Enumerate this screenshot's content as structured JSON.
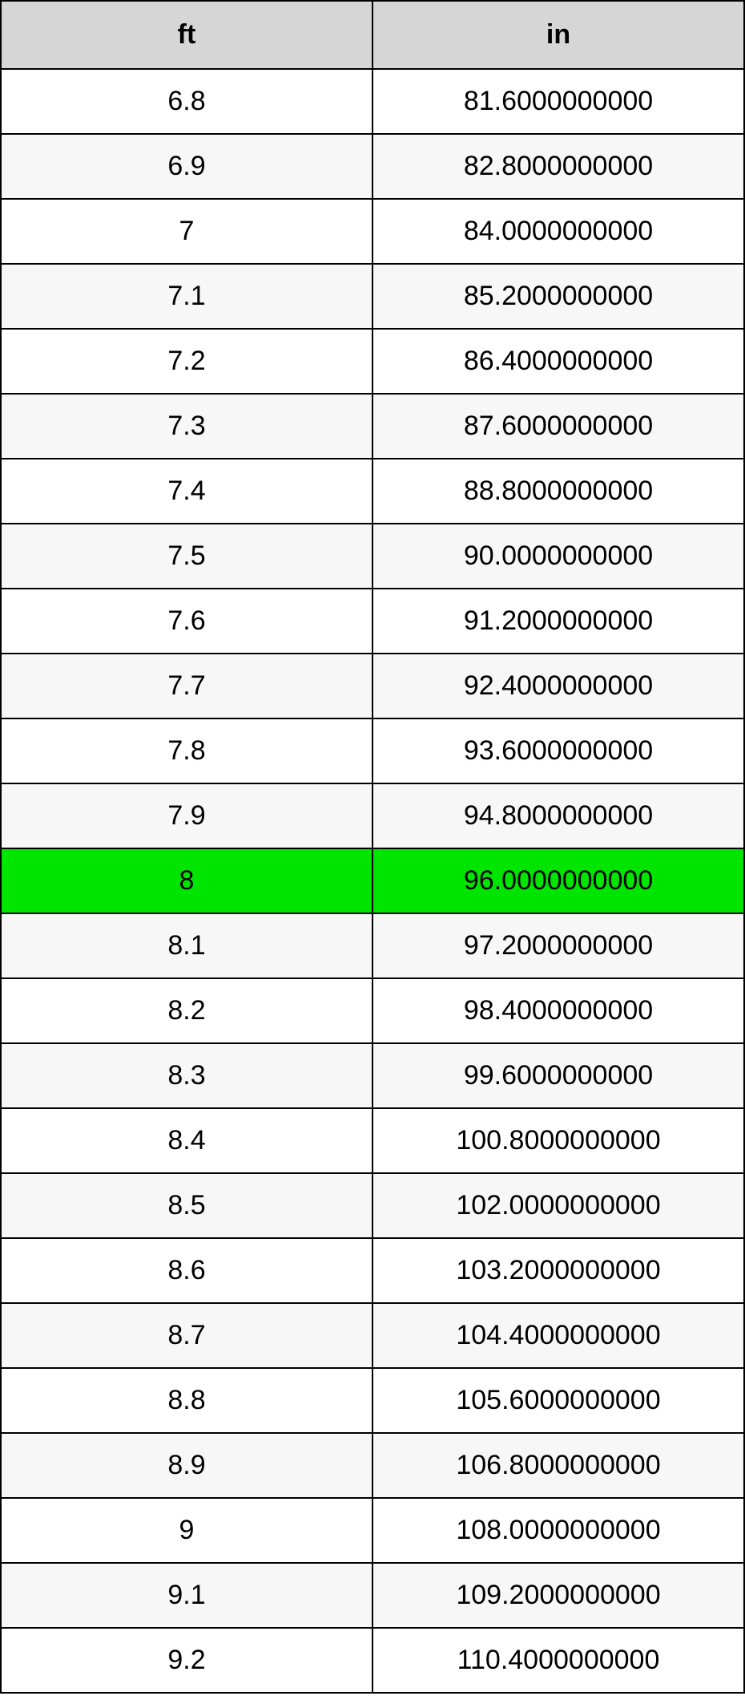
{
  "table": {
    "type": "table",
    "columns": [
      {
        "header": "ft",
        "align": "center"
      },
      {
        "header": "in",
        "align": "center"
      }
    ],
    "header_bg": "#d6d6d6",
    "header_fontsize": 34,
    "header_fontweight": "bold",
    "cell_fontsize": 34,
    "border_color": "#000000",
    "row_bg_odd": "#ffffff",
    "row_bg_even": "#f7f7f7",
    "highlight_bg": "#00e500",
    "highlight_index": 12,
    "rows": [
      {
        "ft": "6.8",
        "in": "81.6000000000"
      },
      {
        "ft": "6.9",
        "in": "82.8000000000"
      },
      {
        "ft": "7",
        "in": "84.0000000000"
      },
      {
        "ft": "7.1",
        "in": "85.2000000000"
      },
      {
        "ft": "7.2",
        "in": "86.4000000000"
      },
      {
        "ft": "7.3",
        "in": "87.6000000000"
      },
      {
        "ft": "7.4",
        "in": "88.8000000000"
      },
      {
        "ft": "7.5",
        "in": "90.0000000000"
      },
      {
        "ft": "7.6",
        "in": "91.2000000000"
      },
      {
        "ft": "7.7",
        "in": "92.4000000000"
      },
      {
        "ft": "7.8",
        "in": "93.6000000000"
      },
      {
        "ft": "7.9",
        "in": "94.8000000000"
      },
      {
        "ft": "8",
        "in": "96.0000000000"
      },
      {
        "ft": "8.1",
        "in": "97.2000000000"
      },
      {
        "ft": "8.2",
        "in": "98.4000000000"
      },
      {
        "ft": "8.3",
        "in": "99.6000000000"
      },
      {
        "ft": "8.4",
        "in": "100.8000000000"
      },
      {
        "ft": "8.5",
        "in": "102.0000000000"
      },
      {
        "ft": "8.6",
        "in": "103.2000000000"
      },
      {
        "ft": "8.7",
        "in": "104.4000000000"
      },
      {
        "ft": "8.8",
        "in": "105.6000000000"
      },
      {
        "ft": "8.9",
        "in": "106.8000000000"
      },
      {
        "ft": "9",
        "in": "108.0000000000"
      },
      {
        "ft": "9.1",
        "in": "109.2000000000"
      },
      {
        "ft": "9.2",
        "in": "110.4000000000"
      }
    ]
  }
}
